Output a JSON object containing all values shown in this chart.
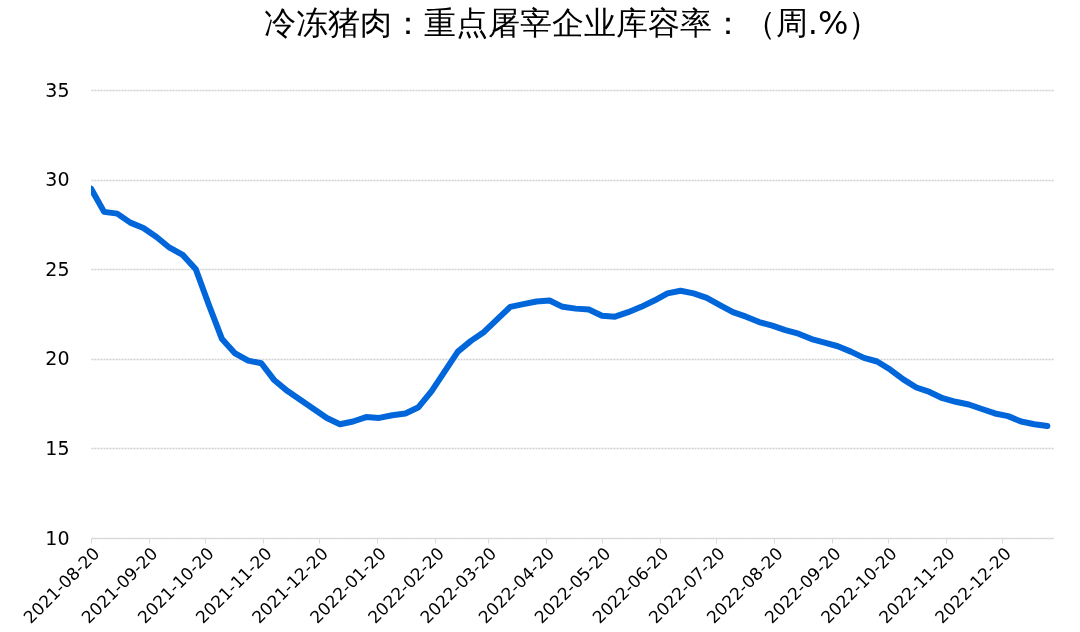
{
  "chart_data": {
    "type": "line",
    "title": "冷冻猪肉：重点屠宰企业库容率：（周.%）",
    "x": [
      "2021-08-20",
      "2021-08-27",
      "2021-09-03",
      "2021-09-10",
      "2021-09-17",
      "2021-09-24",
      "2021-10-01",
      "2021-10-08",
      "2021-10-15",
      "2021-10-22",
      "2021-10-29",
      "2021-11-05",
      "2021-11-12",
      "2021-11-19",
      "2021-11-26",
      "2021-12-03",
      "2021-12-10",
      "2021-12-17",
      "2021-12-24",
      "2021-12-31",
      "2022-01-07",
      "2022-01-14",
      "2022-01-21",
      "2022-01-28",
      "2022-02-04",
      "2022-02-11",
      "2022-02-18",
      "2022-02-25",
      "2022-03-04",
      "2022-03-11",
      "2022-03-18",
      "2022-03-25",
      "2022-04-01",
      "2022-04-08",
      "2022-04-15",
      "2022-04-22",
      "2022-04-29",
      "2022-05-06",
      "2022-05-13",
      "2022-05-20",
      "2022-05-27",
      "2022-06-03",
      "2022-06-10",
      "2022-06-17",
      "2022-06-24",
      "2022-07-01",
      "2022-07-08",
      "2022-07-15",
      "2022-07-22",
      "2022-07-29",
      "2022-08-05",
      "2022-08-12",
      "2022-08-19",
      "2022-08-26",
      "2022-09-02",
      "2022-09-09",
      "2022-09-16",
      "2022-09-23",
      "2022-09-30",
      "2022-10-07",
      "2022-10-14",
      "2022-10-21",
      "2022-10-28",
      "2022-11-04",
      "2022-11-11",
      "2022-11-18",
      "2022-11-25",
      "2022-12-02",
      "2022-12-09",
      "2022-12-16",
      "2022-12-23",
      "2022-12-30",
      "2023-01-06",
      "2023-01-13"
    ],
    "series": [
      {
        "color": "#0066d9",
        "values": [
          29.5,
          28.2,
          28.1,
          27.6,
          27.3,
          26.8,
          26.2,
          25.8,
          25.0,
          23.0,
          21.1,
          20.3,
          19.9,
          19.75,
          18.8,
          18.2,
          17.7,
          17.2,
          16.7,
          16.35,
          16.5,
          16.75,
          16.7,
          16.85,
          16.95,
          17.3,
          18.2,
          19.3,
          20.4,
          21.0,
          21.5,
          22.2,
          22.9,
          23.05,
          23.2,
          23.25,
          22.9,
          22.8,
          22.75,
          22.4,
          22.35,
          22.6,
          22.9,
          23.25,
          23.65,
          23.8,
          23.65,
          23.4,
          23.0,
          22.6,
          22.35,
          22.05,
          21.85,
          21.6,
          21.4,
          21.1,
          20.9,
          20.7,
          20.4,
          20.05,
          19.85,
          19.4,
          18.85,
          18.4,
          18.15,
          17.8,
          17.6,
          17.45,
          17.2,
          16.95,
          16.8,
          16.5,
          16.35,
          16.25
        ]
      }
    ],
    "xlim": [
      "2021-08-20",
      "2023-01-16"
    ],
    "xticks": [
      "2021-08-20",
      "2021-09-20",
      "2021-10-20",
      "2021-11-20",
      "2021-12-20",
      "2022-01-20",
      "2022-02-20",
      "2022-03-20",
      "2022-04-20",
      "2022-05-20",
      "2022-06-20",
      "2022-07-20",
      "2022-08-20",
      "2022-09-20",
      "2022-10-20",
      "2022-11-20",
      "2022-12-20"
    ],
    "ylim": [
      10,
      35
    ],
    "yticks": [
      10,
      15,
      20,
      25,
      30,
      35
    ],
    "grid": "y",
    "marker": "none",
    "line_style": "solid"
  }
}
